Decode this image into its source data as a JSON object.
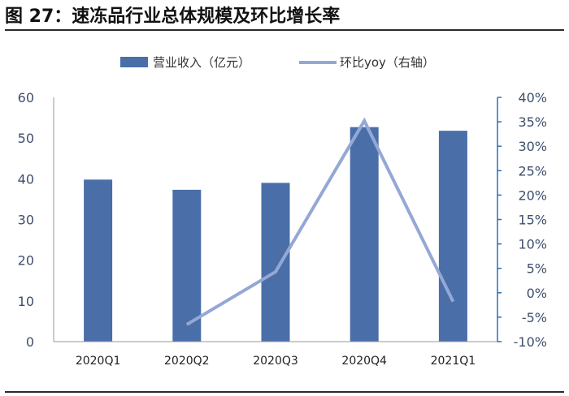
{
  "title": "图 27：速冻品行业总体规模及环比增长率",
  "chart_data": {
    "type": "bar+line",
    "categories": [
      "2020Q1",
      "2020Q2",
      "2020Q3",
      "2020Q4",
      "2021Q1"
    ],
    "series": [
      {
        "name": "营业收入（亿元）",
        "type": "bar",
        "axis": "left",
        "values": [
          39.8,
          37.3,
          39.0,
          52.7,
          51.8
        ]
      },
      {
        "name": "环比yoy（右轴）",
        "type": "line",
        "axis": "right",
        "values": [
          null,
          -6.5,
          4.3,
          35.2,
          -1.8
        ]
      }
    ],
    "y_left": {
      "min": 0,
      "max": 60,
      "step": 10,
      "tick_labels": [
        "0",
        "10",
        "20",
        "30",
        "40",
        "50",
        "60"
      ]
    },
    "y_right": {
      "min": -10,
      "max": 40,
      "step": 5,
      "tick_labels": [
        "-10%",
        "-5%",
        "0%",
        "5%",
        "10%",
        "15%",
        "20%",
        "25%",
        "30%",
        "35%",
        "40%"
      ]
    },
    "legend_position": "top-center",
    "grid": false,
    "colors": {
      "bar": "#4a6fa8",
      "line": "#94a8d6",
      "axis_right": "#2f6fb6",
      "axis_left": "#9a9a9a"
    }
  }
}
